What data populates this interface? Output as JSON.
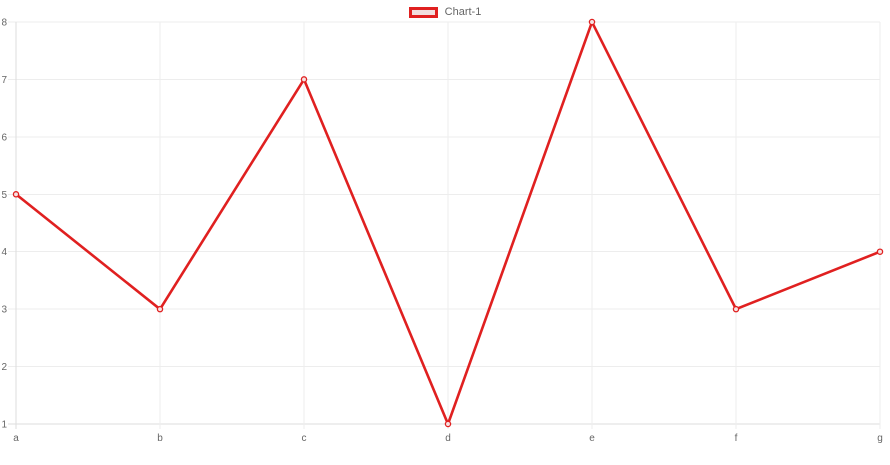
{
  "chart_data": {
    "type": "line",
    "categories": [
      "a",
      "b",
      "c",
      "d",
      "e",
      "f",
      "g"
    ],
    "series": [
      {
        "name": "Chart-1",
        "values": [
          5,
          3,
          7,
          1,
          8,
          3,
          4
        ]
      }
    ],
    "title": "",
    "xlabel": "",
    "ylabel": "",
    "ylim": [
      1,
      8
    ],
    "y_ticks": [
      1,
      2,
      3,
      4,
      5,
      6,
      7,
      8
    ],
    "grid": true,
    "legend_position": "top-center",
    "line_color": "#e02020",
    "point_fill_color": "#f6e2e2",
    "legend_fill_color": "#f2dede",
    "grid_color": "#ededed",
    "axis_color": "#dddddd",
    "tick_label_color": "#666666",
    "background_color": "#ffffff"
  }
}
